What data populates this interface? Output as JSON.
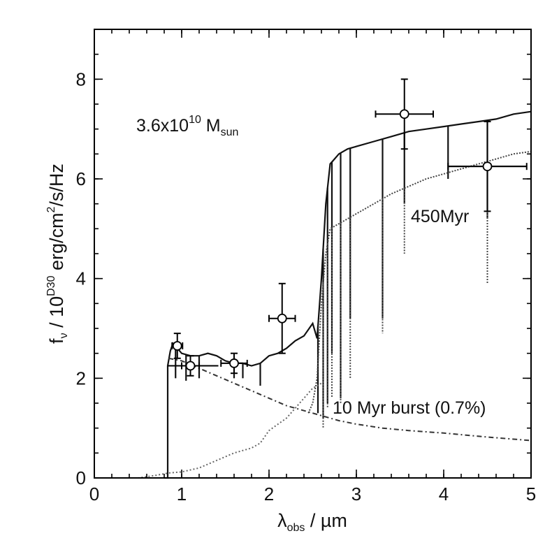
{
  "chart_data": {
    "type": "line",
    "title": "",
    "xlabel": {
      "main": "λ",
      "sub": "obs",
      "rest": " / µm"
    },
    "ylabel": {
      "p1": "f",
      "p1_sub": "ν",
      "p2": " / 10",
      "p2_sup": "D30",
      "p3": " erg/cm",
      "p3_sup": "2",
      "p4": "/s/Hz"
    },
    "xlim": [
      0,
      5
    ],
    "ylim": [
      0,
      9
    ],
    "x_ticks": [
      0,
      1,
      2,
      3,
      4,
      5
    ],
    "x_tick_labels": [
      "0",
      "1",
      "2",
      "3",
      "4",
      "5"
    ],
    "y_ticks": [
      0,
      2,
      4,
      6,
      8
    ],
    "y_tick_labels": [
      "0",
      "2",
      "4",
      "6",
      "8"
    ],
    "grid": false,
    "annotations": {
      "mass": {
        "main": "3.6x10",
        "sup": "10",
        "mid": " M",
        "sub": "sun"
      },
      "age": "450Myr",
      "burst": "10 Myr burst (0.7%)"
    },
    "series": [
      {
        "style": "solid",
        "points": [
          [
            0.8,
            0
          ],
          [
            0.84,
            0
          ],
          [
            0.84,
            2.25
          ],
          [
            0.87,
            2.55
          ],
          [
            0.9,
            2.7
          ],
          [
            0.95,
            2.6
          ],
          [
            1.0,
            2.5
          ],
          [
            1.1,
            2.45
          ],
          [
            1.2,
            2.45
          ],
          [
            1.3,
            2.5
          ],
          [
            1.4,
            2.45
          ],
          [
            1.5,
            2.35
          ],
          [
            1.6,
            2.3
          ],
          [
            1.7,
            2.3
          ],
          [
            1.8,
            2.25
          ],
          [
            1.9,
            2.3
          ],
          [
            2.0,
            2.45
          ],
          [
            2.1,
            2.5
          ],
          [
            2.2,
            2.6
          ],
          [
            2.3,
            2.75
          ],
          [
            2.4,
            2.85
          ],
          [
            2.5,
            3.1
          ],
          [
            2.55,
            2.8
          ],
          [
            2.6,
            4.0
          ],
          [
            2.65,
            5.5
          ],
          [
            2.7,
            6.3
          ],
          [
            2.75,
            6.4
          ],
          [
            2.8,
            6.5
          ],
          [
            2.9,
            6.6
          ],
          [
            3.0,
            6.65
          ],
          [
            3.2,
            6.75
          ],
          [
            3.4,
            6.85
          ],
          [
            3.6,
            6.95
          ],
          [
            3.8,
            7.0
          ],
          [
            4.0,
            7.05
          ],
          [
            4.2,
            7.1
          ],
          [
            4.4,
            7.15
          ],
          [
            4.6,
            7.2
          ],
          [
            4.8,
            7.3
          ],
          [
            5.0,
            7.35
          ]
        ],
        "dips": [
          [
            0.93,
            2.0
          ],
          [
            1.05,
            1.95
          ],
          [
            1.2,
            2.0
          ],
          [
            1.6,
            2.0
          ],
          [
            1.7,
            2.0
          ],
          [
            1.9,
            1.85
          ],
          [
            2.56,
            1.3
          ],
          [
            2.62,
            1.2
          ],
          [
            2.67,
            1.5
          ],
          [
            2.72,
            2.5
          ],
          [
            2.82,
            1.6
          ],
          [
            2.93,
            3.2
          ],
          [
            3.3,
            3.2
          ],
          [
            3.55,
            5.5
          ],
          [
            4.05,
            6.0
          ],
          [
            4.5,
            5.2
          ]
        ]
      },
      {
        "style": "dotted",
        "points": [
          [
            2.45,
            1.3
          ],
          [
            2.5,
            1.5
          ],
          [
            2.55,
            2.0
          ],
          [
            2.6,
            3.5
          ],
          [
            2.65,
            4.5
          ],
          [
            2.7,
            5.0
          ],
          [
            2.8,
            5.1
          ],
          [
            2.9,
            5.2
          ],
          [
            3.0,
            5.3
          ],
          [
            3.2,
            5.5
          ],
          [
            3.4,
            5.7
          ],
          [
            3.6,
            5.85
          ],
          [
            3.8,
            6.0
          ],
          [
            4.0,
            6.1
          ],
          [
            4.2,
            6.2
          ],
          [
            4.4,
            6.3
          ],
          [
            4.6,
            6.4
          ],
          [
            4.8,
            6.5
          ],
          [
            5.0,
            6.55
          ]
        ],
        "dips": [
          [
            2.62,
            1.0
          ],
          [
            2.67,
            1.4
          ],
          [
            2.72,
            1.6
          ],
          [
            2.82,
            1.5
          ],
          [
            2.93,
            2.0
          ],
          [
            3.3,
            2.9
          ],
          [
            3.55,
            4.5
          ],
          [
            4.5,
            3.9
          ]
        ]
      },
      {
        "style": "dashdot",
        "points": [
          [
            0.85,
            2.4
          ],
          [
            1.0,
            2.35
          ],
          [
            1.2,
            2.2
          ],
          [
            1.4,
            2.05
          ],
          [
            1.6,
            1.9
          ],
          [
            1.8,
            1.75
          ],
          [
            2.0,
            1.6
          ],
          [
            2.2,
            1.45
          ],
          [
            2.4,
            1.35
          ],
          [
            2.6,
            1.25
          ],
          [
            2.8,
            1.15
          ],
          [
            3.0,
            1.08
          ],
          [
            3.3,
            1.0
          ],
          [
            3.6,
            0.95
          ],
          [
            4.0,
            0.9
          ],
          [
            4.5,
            0.82
          ],
          [
            5.0,
            0.75
          ]
        ]
      },
      {
        "style": "dotted-gray",
        "points": [
          [
            0.5,
            0
          ],
          [
            0.7,
            0.05
          ],
          [
            0.85,
            0.1
          ],
          [
            1.0,
            0.12
          ],
          [
            1.2,
            0.2
          ],
          [
            1.4,
            0.35
          ],
          [
            1.6,
            0.5
          ],
          [
            1.8,
            0.6
          ],
          [
            1.9,
            0.7
          ],
          [
            2.0,
            0.95
          ],
          [
            2.2,
            1.2
          ],
          [
            2.35,
            1.5
          ],
          [
            2.5,
            1.8
          ],
          [
            2.6,
            1.9
          ]
        ]
      }
    ],
    "points_with_errors": [
      {
        "x": 0.95,
        "y": 2.65,
        "xerr": 0.06,
        "yerr": 0.25
      },
      {
        "x": 1.1,
        "y": 2.25,
        "xerr": 0.1,
        "yerr": 0.2
      },
      {
        "x": 1.6,
        "y": 2.3,
        "xerr": 0.15,
        "yerr": 0.2
      },
      {
        "x": 2.15,
        "y": 3.2,
        "xerr": 0.15,
        "yerr": 0.7
      },
      {
        "x": 3.55,
        "y": 7.3,
        "xerr": 0.33,
        "yerr": 0.7
      },
      {
        "x": 4.5,
        "y": 6.25,
        "xerr": 0.45,
        "yerr": 0.9
      }
    ],
    "step_segments": [
      {
        "x0": 0.84,
        "x1": 1.42,
        "y": 2.25
      },
      {
        "x0": 4.05,
        "x1": 4.95,
        "y": 6.25
      }
    ]
  }
}
